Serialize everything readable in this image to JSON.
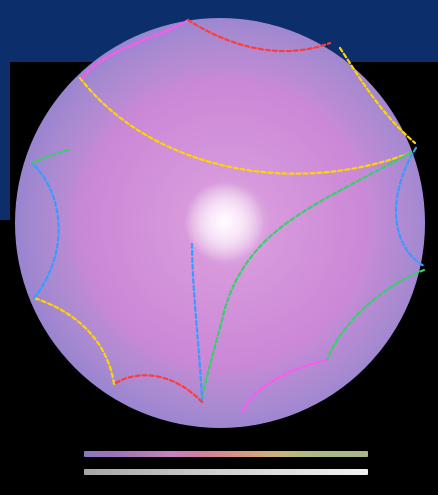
{
  "scene": {
    "background": "#000000",
    "panel_color": "#0c2f6b",
    "disk_base_color": "#8a7fcf",
    "disk_inner_color": "#c98bd7",
    "center_glow": "#ffffff",
    "arc_colors": [
      "#ff3b3b",
      "#ffd400",
      "#35d06b",
      "#3a9bff",
      "#ff57f0"
    ],
    "color_scale": [
      "#8a78c0",
      "#9b74b9",
      "#b07ab6",
      "#c584c0",
      "#cf7fa5",
      "#d78d8a",
      "#d6a17f",
      "#c8b77c",
      "#b0b984",
      "#a6b987",
      "#a8b885"
    ],
    "gray_scale": [
      "#a7a7a7",
      "#b7b7b7",
      "#c9c9c9",
      "#d8d8d8",
      "#e5e5e5",
      "#f1f1f1"
    ]
  }
}
